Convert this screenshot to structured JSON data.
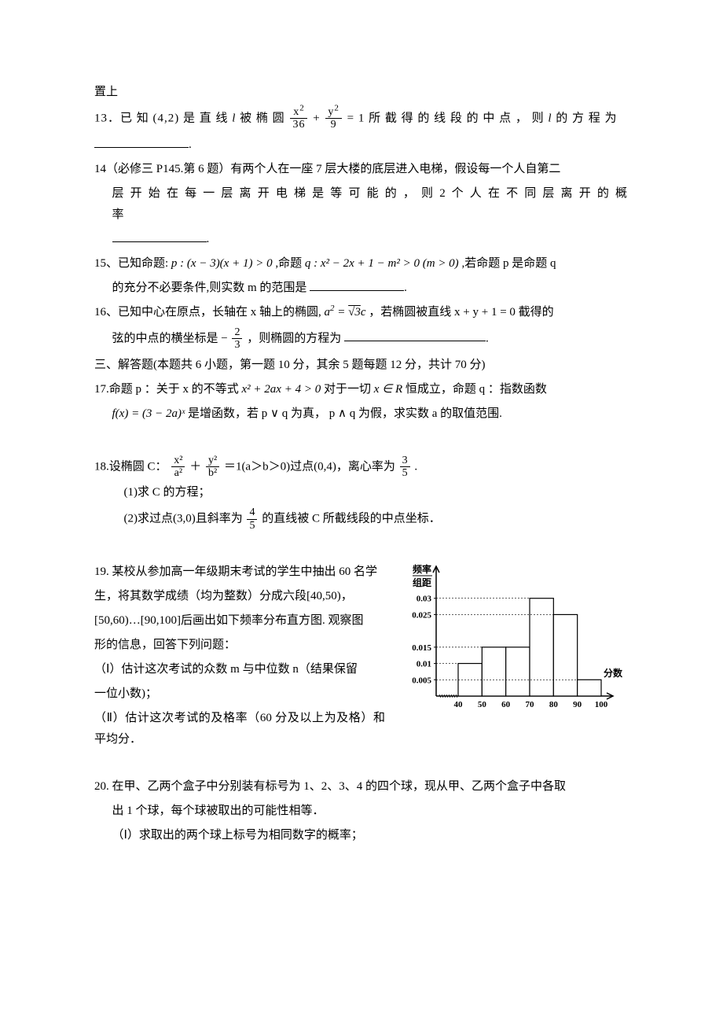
{
  "top_fragment": "置上",
  "q13_pre": "13．已 知 (4,2) 是 直 线 ",
  "q13_l": "l",
  "q13_mid1": " 被 椭 圆 ",
  "q13_frac1_num": "x",
  "q13_frac1_den": "36",
  "q13_plus": " + ",
  "q13_frac2_num": "y",
  "q13_frac2_den": "9",
  "q13_eq": " = 1 所 截 得 的 线 段 的 中 点 ， 则 ",
  "q13_l2": "l",
  "q13_tail": " 的 方 程 为",
  "blank_period": ".",
  "q14_line1": "14（必修三 P145.第 6 题）有两个人在一座 7 层大楼的底层进入电梯，假设每一个人自第二",
  "q14_line2": "层 开 始 在 每 一 层 离 开 电 梯 是 等 可 能 的 ， 则 2 个 人 在 不 同 层 离 开 的 概 率",
  "q15_pre": "15、已知命题: ",
  "q15_p": "p : (x − 3)(x + 1) > 0",
  "q15_mid": " ,命题 ",
  "q15_q": "q : x² − 2x + 1 − m² > 0 (m > 0)",
  "q15_tail": " ,若命题 p 是命题 q",
  "q15_line2_pre": "的充分不必要条件,则实数 m 的范围是",
  "q16_line1_pre": "16、已知中心在原点，长轴在 x 轴上的椭圆, ",
  "q16_a_eq": "a² = √3 c",
  "q16_line1_tail": " ，若椭圆被直线 x + y + 1 = 0 截得的",
  "q16_line2_pre": "弦的中点的横坐标是 −",
  "q16_frac_num": "2",
  "q16_frac_den": "3",
  "q16_line2_tail": "，则椭圆的方程为",
  "section3": "三、解答题(本题共 6 小题，第一题 10 分，其余 5 题每题 12 分，共计 70 分)",
  "q17_line1_pre": "17.命题 p ：关于 x 的不等式 ",
  "q17_ineq": "x² + 2ax + 4 > 0",
  "q17_line1_mid": " 对于一切 ",
  "q17_xr": "x ∈ R",
  "q17_line1_tail": " 恒成立，命题 q ：指数函数",
  "q17_line2_pre": "",
  "q17_fx": "f(x) = (3 − 2a)ˣ",
  "q17_line2_tail": " 是增函数，若 p ∨ q 为真， p ∧ q 为假，求实数 a 的取值范围.",
  "q18_pre": "18.设椭圆 C：",
  "q18_f1n": "x²",
  "q18_f1d": "a²",
  "q18_plus": "＋",
  "q18_f2n": "y²",
  "q18_f2d": "b²",
  "q18_mid": "＝1(a＞b＞0)过点(0,4)，离心率为",
  "q18_f3n": "3",
  "q18_f3d": "5",
  "q18_tail": ".",
  "q18_s1": "(1)求 C 的方程；",
  "q18_s2_pre": "(2)求过点(3,0)且斜率为",
  "q18_s2_fn": "4",
  "q18_s2_fd": "5",
  "q18_s2_tail": "的直线被 C 所截线段的中点坐标．",
  "q19_line1": "19. 某校从参加高一年级期末考试的学生中抽出 60 名学",
  "q19_line2_pre": "生，将其数学成绩（均为整数）分成六段",
  "q19_interval1": "[40,50)",
  "q19_comma": "，",
  "q19_interval2": "[50,60)",
  "q19_dots": "…",
  "q19_interval3": "[90,100]",
  "q19_line3_tail": "后画出如下频率分布直方图. 观察图",
  "q19_line4": "形的信息，回答下列问题：",
  "q19_s1": "（Ⅰ）估计这次考试的众数 m 与中位数 n（结果保留",
  "q19_s1b": "一位小数)；",
  "q19_s2": "（Ⅱ）估计这次考试的及格率（60 分及以上为及格）和平均分．",
  "q20_line1": "20. 在甲、乙两个盒子中分别装有标号为 1、2、3、4 的四个球，现从甲、乙两个盒子中各取",
  "q20_line2": "出 1 个球，每个球被取出的可能性相等．",
  "q20_s1": "（Ⅰ）求取出的两个球上标号为相同数字的概率；",
  "histogram": {
    "type": "bar",
    "x_labels": [
      "40",
      "50",
      "60",
      "70",
      "80",
      "90",
      "100"
    ],
    "y_labels": [
      "0.005",
      "0.01",
      "0.015",
      "0.025",
      "0.03"
    ],
    "y_missing_row": "0.025",
    "x_axis_title": "分数",
    "y_axis_title_top": "频率",
    "y_axis_title_bot": "组距",
    "bars": [
      {
        "x": 40,
        "h": 0.005,
        "hatch": true
      },
      {
        "x": 40,
        "h": 0.01,
        "hatch": false
      },
      {
        "x": 50,
        "h": 0.015,
        "hatch": false
      },
      {
        "x": 60,
        "h": 0.015,
        "hatch": false
      },
      {
        "x": 70,
        "h": 0.03,
        "hatch": false
      },
      {
        "x": 80,
        "h": 0.025,
        "hatch": false
      },
      {
        "x": 90,
        "h": 0.005,
        "hatch": false
      }
    ],
    "axis_color": "#000000",
    "bar_stroke": "#000000",
    "bar_fill": "#ffffff",
    "background": "#ffffff",
    "font_size_axis": 11,
    "font_size_label": 12
  }
}
